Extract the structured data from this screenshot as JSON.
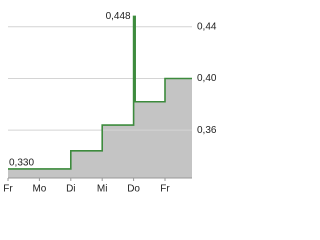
{
  "chart_data": {
    "type": "step-area",
    "x": [
      0,
      2,
      2,
      3,
      3,
      4,
      4,
      4.05,
      4.05,
      5,
      5,
      5.86
    ],
    "values": [
      0.33,
      0.33,
      0.344,
      0.344,
      0.364,
      0.364,
      0.448,
      0.448,
      0.382,
      0.382,
      0.4,
      0.4
    ],
    "color": "#3d8b3d",
    "area_color": "#c4c4c4",
    "xlim": [
      0,
      5.86
    ],
    "xticks": [
      {
        "value": 0,
        "label": "Fr"
      },
      {
        "value": 1,
        "label": "Mo"
      },
      {
        "value": 2,
        "label": "Di"
      },
      {
        "value": 3,
        "label": "Mi"
      },
      {
        "value": 4,
        "label": "Do"
      },
      {
        "value": 5,
        "label": "Fr"
      }
    ],
    "ylim": [
      0.323,
      0.453
    ],
    "yticks": [
      {
        "value": 0.36,
        "label": "0,36"
      },
      {
        "value": 0.4,
        "label": "0,40"
      },
      {
        "value": 0.44,
        "label": "0,44"
      }
    ],
    "grid": true,
    "annotations": [
      {
        "x": 4,
        "value": 0.448,
        "label": "0,448"
      },
      {
        "x": 0,
        "value": 0.33,
        "label": "0,330"
      }
    ]
  }
}
